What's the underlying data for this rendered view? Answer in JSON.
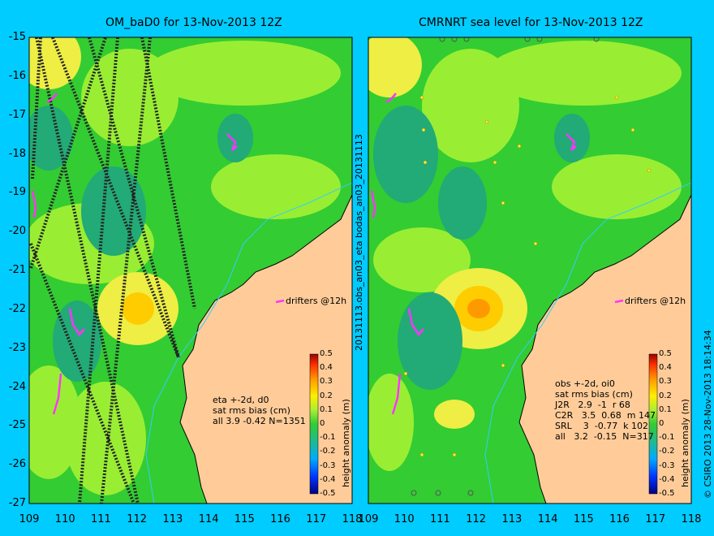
{
  "panels": [
    {
      "title": "OM_baD0 for 13-Nov-2013 12Z",
      "stats": [
        "eta +-2d, d0",
        "sat rms bias (cm)",
        "all 3.9 -0.42 N=1351"
      ],
      "drifter_label": "drifters @12h",
      "colorbar_label": "height anomaly (m)"
    },
    {
      "title": "CMRNRT sea level  for 13-Nov-2013 12Z",
      "stats": [
        "obs +-2d, oi0",
        "sat rms bias (cm)",
        "J2R   2.9  -1  r 68",
        "C2R   3.5  0.68  m 147",
        "SRL    3  -0.77  k 102",
        "all   3.2  -0.15  N=317"
      ],
      "drifter_label": "drifters @12h",
      "colorbar_label": "height anomaly (m)"
    }
  ],
  "axes": {
    "lat_ticks": [
      "-15",
      "-16",
      "-17",
      "-18",
      "-19",
      "-20",
      "-21",
      "-22",
      "-23",
      "-24",
      "-25",
      "-26",
      "-27"
    ],
    "lon_ticks": [
      "109",
      "110",
      "111",
      "112",
      "113",
      "114",
      "115",
      "116",
      "117",
      "118"
    ]
  },
  "colorbar_ticks": [
    "0.5",
    "0.4",
    "0.3",
    "0.2",
    "0.1",
    "0",
    "-0.1",
    "-0.2",
    "-0.3",
    "-0.4",
    "-0.5"
  ],
  "side_labels": {
    "middle": "20131113.obs_an03_eta      bodas_an03_20131113",
    "right": "© CSIRO 2013    28-Nov-2013 18:14:34"
  },
  "colors": {
    "background": "#00ccff",
    "land": "#ffcc99",
    "sea_green": "#33cc33",
    "sea_light": "#99ee33",
    "sea_yellow": "#eeee44",
    "sea_teal": "#33aa88",
    "drifter": "#ff33ff"
  }
}
